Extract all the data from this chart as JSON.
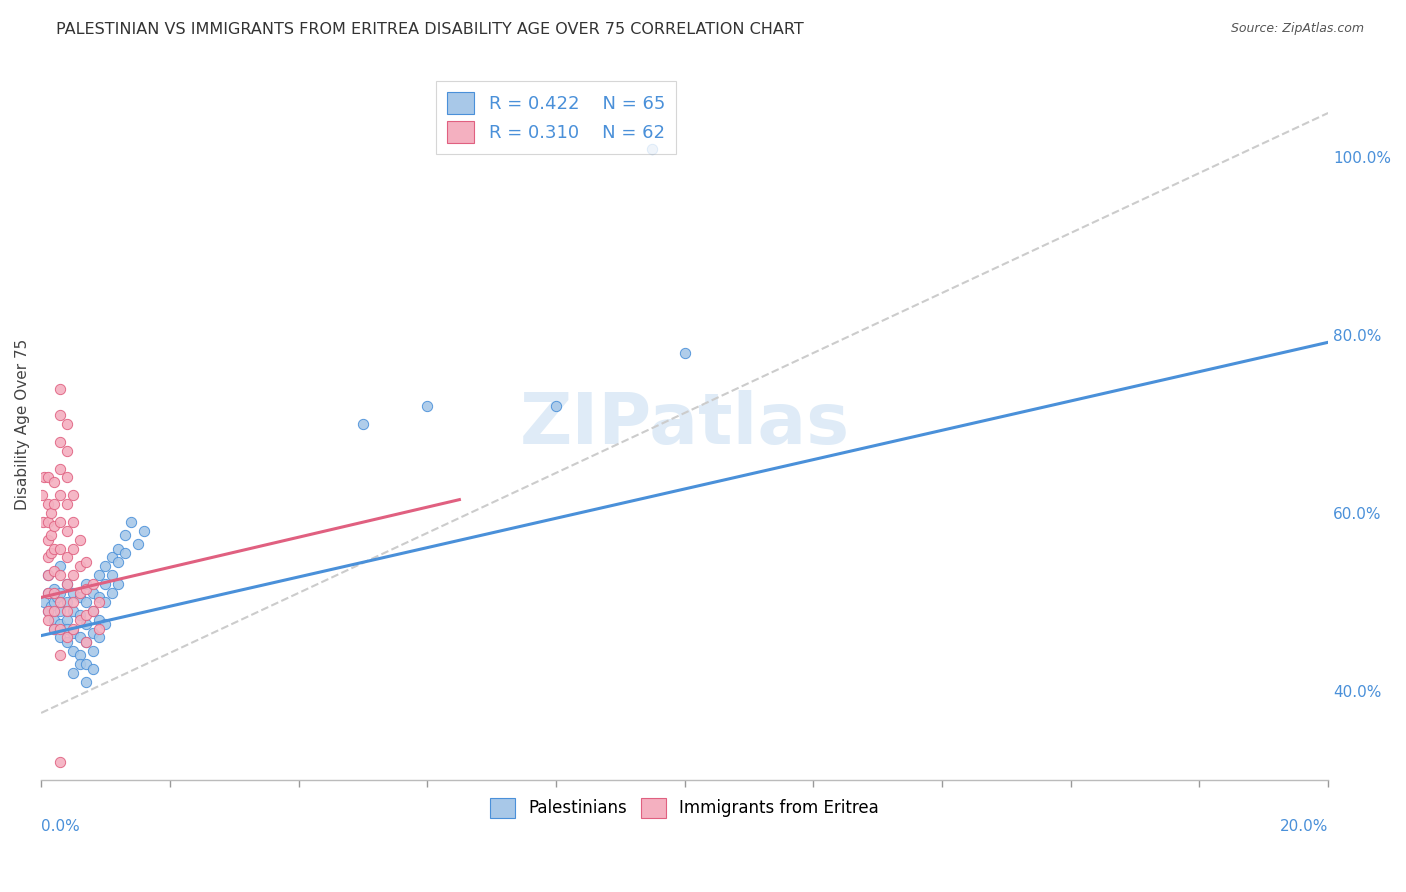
{
  "title": "PALESTINIAN VS IMMIGRANTS FROM ERITREA DISABILITY AGE OVER 75 CORRELATION CHART",
  "source": "Source: ZipAtlas.com",
  "ylabel": "Disability Age Over 75",
  "legend_blue_r": "0.422",
  "legend_blue_n": "65",
  "legend_pink_r": "0.310",
  "legend_pink_n": "62",
  "legend_blue_label": "Palestinians",
  "legend_pink_label": "Immigrants from Eritrea",
  "blue_color": "#a8c8e8",
  "pink_color": "#f4b0c0",
  "blue_line_color": "#4a90d9",
  "pink_line_color": "#e06080",
  "watermark_color": "#b8d4ee",
  "xlim": [
    0.0,
    0.2
  ],
  "ylim": [
    0.3,
    1.1
  ],
  "right_yticks": [
    0.4,
    0.6,
    0.8,
    1.0
  ],
  "right_yticklabels": [
    "40.0%",
    "60.0%",
    "80.0%",
    "100.0%"
  ],
  "blue_scatter": [
    [
      0.0005,
      0.5
    ],
    [
      0.001,
      0.49
    ],
    [
      0.001,
      0.51
    ],
    [
      0.001,
      0.53
    ],
    [
      0.0015,
      0.495
    ],
    [
      0.002,
      0.48
    ],
    [
      0.002,
      0.5
    ],
    [
      0.002,
      0.515
    ],
    [
      0.002,
      0.47
    ],
    [
      0.0025,
      0.505
    ],
    [
      0.003,
      0.49
    ],
    [
      0.003,
      0.51
    ],
    [
      0.003,
      0.54
    ],
    [
      0.003,
      0.46
    ],
    [
      0.003,
      0.475
    ],
    [
      0.004,
      0.5
    ],
    [
      0.004,
      0.52
    ],
    [
      0.004,
      0.48
    ],
    [
      0.004,
      0.455
    ],
    [
      0.004,
      0.47
    ],
    [
      0.005,
      0.51
    ],
    [
      0.005,
      0.49
    ],
    [
      0.005,
      0.465
    ],
    [
      0.005,
      0.445
    ],
    [
      0.005,
      0.42
    ],
    [
      0.006,
      0.505
    ],
    [
      0.006,
      0.485
    ],
    [
      0.006,
      0.46
    ],
    [
      0.006,
      0.44
    ],
    [
      0.006,
      0.43
    ],
    [
      0.007,
      0.52
    ],
    [
      0.007,
      0.5
    ],
    [
      0.007,
      0.475
    ],
    [
      0.007,
      0.455
    ],
    [
      0.007,
      0.43
    ],
    [
      0.007,
      0.41
    ],
    [
      0.008,
      0.51
    ],
    [
      0.008,
      0.49
    ],
    [
      0.008,
      0.465
    ],
    [
      0.008,
      0.445
    ],
    [
      0.008,
      0.425
    ],
    [
      0.009,
      0.53
    ],
    [
      0.009,
      0.505
    ],
    [
      0.009,
      0.48
    ],
    [
      0.009,
      0.46
    ],
    [
      0.01,
      0.54
    ],
    [
      0.01,
      0.52
    ],
    [
      0.01,
      0.5
    ],
    [
      0.01,
      0.475
    ],
    [
      0.011,
      0.55
    ],
    [
      0.011,
      0.53
    ],
    [
      0.011,
      0.51
    ],
    [
      0.012,
      0.56
    ],
    [
      0.012,
      0.545
    ],
    [
      0.012,
      0.52
    ],
    [
      0.013,
      0.575
    ],
    [
      0.013,
      0.555
    ],
    [
      0.014,
      0.59
    ],
    [
      0.015,
      0.565
    ],
    [
      0.016,
      0.58
    ],
    [
      0.05,
      0.7
    ],
    [
      0.06,
      0.72
    ],
    [
      0.08,
      0.72
    ],
    [
      0.095,
      1.01
    ],
    [
      0.1,
      0.78
    ]
  ],
  "pink_scatter": [
    [
      0.0002,
      0.62
    ],
    [
      0.0003,
      0.59
    ],
    [
      0.0004,
      0.64
    ],
    [
      0.001,
      0.64
    ],
    [
      0.001,
      0.61
    ],
    [
      0.001,
      0.59
    ],
    [
      0.001,
      0.57
    ],
    [
      0.001,
      0.55
    ],
    [
      0.001,
      0.53
    ],
    [
      0.001,
      0.51
    ],
    [
      0.001,
      0.49
    ],
    [
      0.001,
      0.48
    ],
    [
      0.0015,
      0.6
    ],
    [
      0.0015,
      0.575
    ],
    [
      0.0015,
      0.555
    ],
    [
      0.002,
      0.635
    ],
    [
      0.002,
      0.61
    ],
    [
      0.002,
      0.585
    ],
    [
      0.002,
      0.56
    ],
    [
      0.002,
      0.535
    ],
    [
      0.002,
      0.51
    ],
    [
      0.002,
      0.49
    ],
    [
      0.002,
      0.47
    ],
    [
      0.003,
      0.74
    ],
    [
      0.003,
      0.71
    ],
    [
      0.003,
      0.68
    ],
    [
      0.003,
      0.65
    ],
    [
      0.003,
      0.62
    ],
    [
      0.003,
      0.59
    ],
    [
      0.003,
      0.56
    ],
    [
      0.003,
      0.53
    ],
    [
      0.003,
      0.5
    ],
    [
      0.003,
      0.47
    ],
    [
      0.003,
      0.44
    ],
    [
      0.004,
      0.7
    ],
    [
      0.004,
      0.67
    ],
    [
      0.004,
      0.64
    ],
    [
      0.004,
      0.61
    ],
    [
      0.004,
      0.58
    ],
    [
      0.004,
      0.55
    ],
    [
      0.004,
      0.52
    ],
    [
      0.004,
      0.49
    ],
    [
      0.004,
      0.46
    ],
    [
      0.005,
      0.62
    ],
    [
      0.005,
      0.59
    ],
    [
      0.005,
      0.56
    ],
    [
      0.005,
      0.53
    ],
    [
      0.005,
      0.5
    ],
    [
      0.005,
      0.47
    ],
    [
      0.006,
      0.57
    ],
    [
      0.006,
      0.54
    ],
    [
      0.006,
      0.51
    ],
    [
      0.006,
      0.48
    ],
    [
      0.007,
      0.545
    ],
    [
      0.007,
      0.515
    ],
    [
      0.007,
      0.485
    ],
    [
      0.007,
      0.455
    ],
    [
      0.008,
      0.52
    ],
    [
      0.008,
      0.49
    ],
    [
      0.009,
      0.5
    ],
    [
      0.009,
      0.47
    ],
    [
      0.003,
      0.32
    ]
  ],
  "blue_line": [
    [
      0.0,
      0.462
    ],
    [
      0.2,
      0.792
    ]
  ],
  "pink_line": [
    [
      0.0,
      0.505
    ],
    [
      0.065,
      0.615
    ]
  ],
  "ref_line": [
    [
      0.0,
      0.375
    ],
    [
      0.2,
      1.05
    ]
  ],
  "grid_color": "#e0e0e0",
  "title_fontsize": 11.5,
  "source_fontsize": 9,
  "tick_fontsize": 11,
  "ylabel_fontsize": 11
}
